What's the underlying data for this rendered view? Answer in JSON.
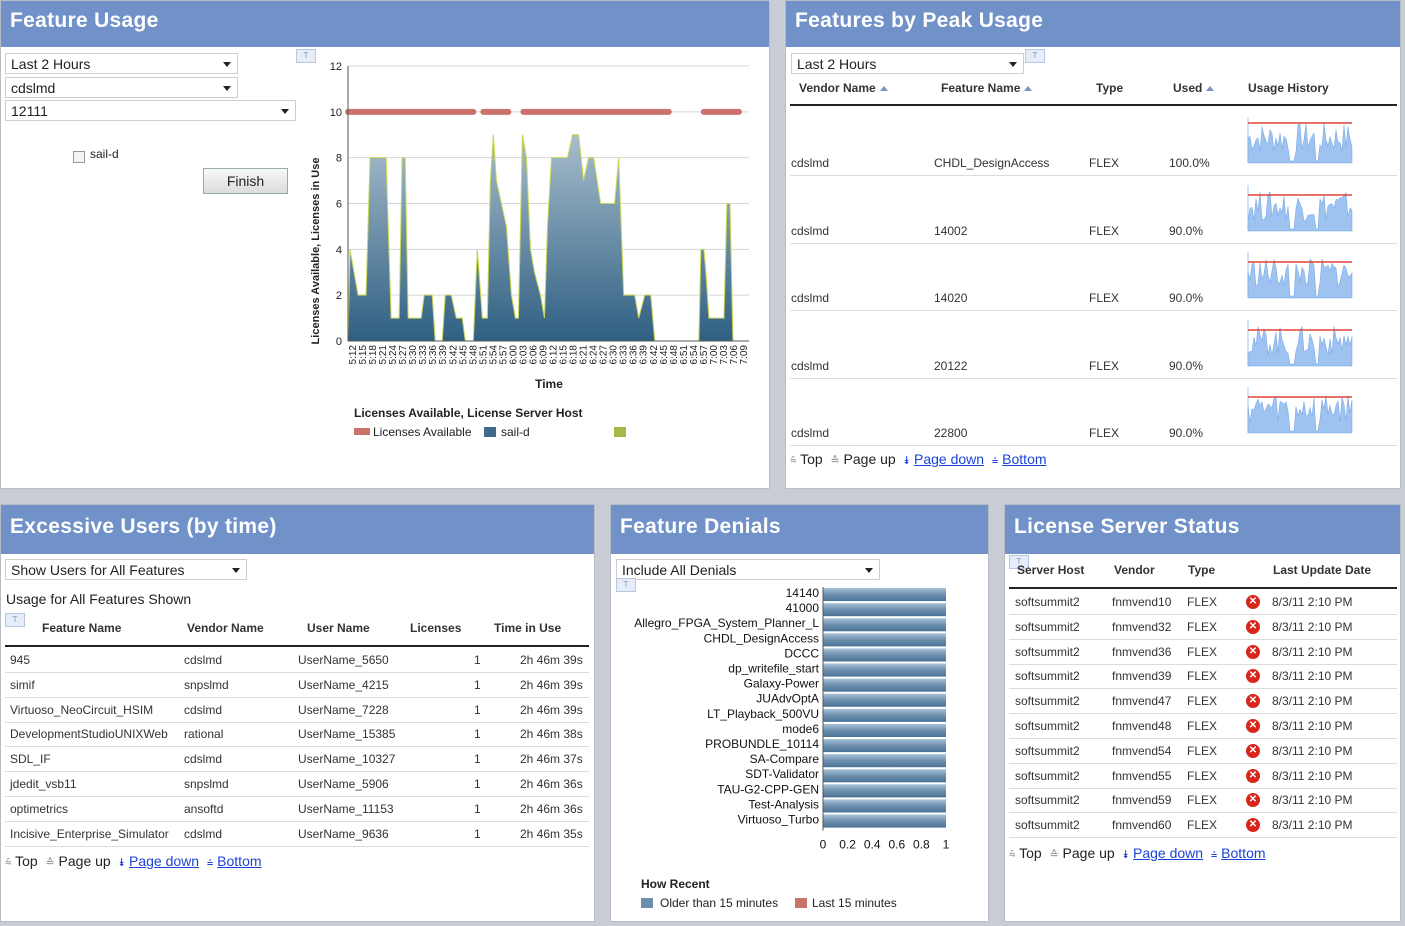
{
  "feature_usage": {
    "title": "Feature Usage",
    "time_select": "Last 2 Hours",
    "vendor_select": "cdslmd",
    "feature_select": "12111",
    "checkbox_label": "sail-d",
    "finish_label": "Finish",
    "chart_data": {
      "type": "area",
      "ylabel": "Licenses Available, Licenses in Use",
      "xlabel": "Time",
      "ylim": [
        0,
        12
      ],
      "yticks": [
        0,
        2,
        4,
        6,
        8,
        10,
        12
      ],
      "x": [
        "5:12",
        "5:15",
        "5:18",
        "5:21",
        "5:24",
        "5:27",
        "5:30",
        "5:33",
        "5:36",
        "5:39",
        "5:42",
        "5:45",
        "5:48",
        "5:51",
        "5:54",
        "5:57",
        "6:00",
        "6:03",
        "6:06",
        "6:09",
        "6:12",
        "6:15",
        "6:18",
        "6:21",
        "6:24",
        "6:27",
        "6:30",
        "6:33",
        "6:36",
        "6:39",
        "6:42",
        "6:45",
        "6:48",
        "6:51",
        "6:54",
        "6:57",
        "7:00",
        "7:03",
        "7:06",
        "7:09"
      ],
      "legend_title": "Licenses Available, License Server Host",
      "series": [
        {
          "name": "Licenses Available",
          "color": "#c9736a",
          "segments": [
            [
              0,
              12.5,
              10
            ],
            [
              13.5,
              16.0,
              10
            ],
            [
              17.5,
              32.0,
              10
            ],
            [
              35.5,
              39.0,
              10
            ]
          ]
        },
        {
          "name": "sail-d",
          "color": "#3d6a8e",
          "points": [
            [
              0,
              0
            ],
            [
              0.2,
              4
            ],
            [
              0.6,
              3
            ],
            [
              1.0,
              2
            ],
            [
              1.8,
              2
            ],
            [
              2.2,
              8
            ],
            [
              3.8,
              8
            ],
            [
              4.3,
              1
            ],
            [
              5.1,
              1
            ],
            [
              5.4,
              8
            ],
            [
              5.7,
              8
            ],
            [
              6.0,
              1
            ],
            [
              7.3,
              1
            ],
            [
              7.6,
              2
            ],
            [
              8.4,
              2
            ],
            [
              8.7,
              0
            ],
            [
              9.4,
              0
            ],
            [
              9.7,
              2
            ],
            [
              10.3,
              2
            ],
            [
              10.8,
              1
            ],
            [
              11.4,
              1
            ],
            [
              11.7,
              0
            ],
            [
              12.5,
              0
            ],
            [
              12.9,
              4
            ],
            [
              13.4,
              1
            ],
            [
              13.9,
              1
            ],
            [
              14.2,
              7
            ],
            [
              14.5,
              9
            ],
            [
              14.8,
              7
            ],
            [
              15.3,
              6
            ],
            [
              15.8,
              5
            ],
            [
              16.3,
              2
            ],
            [
              16.7,
              1
            ],
            [
              17.0,
              1
            ],
            [
              17.4,
              9
            ],
            [
              17.8,
              8
            ],
            [
              18.2,
              4
            ],
            [
              18.6,
              3
            ],
            [
              19.2,
              2
            ],
            [
              19.6,
              1
            ],
            [
              19.9,
              5
            ],
            [
              20.3,
              8
            ],
            [
              21.9,
              8
            ],
            [
              22.4,
              9
            ],
            [
              23.0,
              9
            ],
            [
              23.5,
              7
            ],
            [
              24.0,
              8
            ],
            [
              24.5,
              8
            ],
            [
              25.2,
              6
            ],
            [
              26.0,
              6
            ],
            [
              26.6,
              6
            ],
            [
              27.0,
              8
            ],
            [
              27.5,
              2
            ],
            [
              28.0,
              2
            ],
            [
              28.6,
              2
            ],
            [
              29.0,
              1
            ],
            [
              29.6,
              2
            ],
            [
              30.2,
              2
            ],
            [
              30.6,
              0
            ],
            [
              35.0,
              0
            ],
            [
              35.2,
              4
            ],
            [
              35.5,
              4
            ],
            [
              35.7,
              3
            ],
            [
              36.0,
              1
            ],
            [
              37.5,
              1
            ],
            [
              37.8,
              6
            ],
            [
              38.1,
              6
            ],
            [
              38.4,
              0
            ]
          ]
        }
      ]
    }
  },
  "peak_usage": {
    "title": "Features by Peak Usage",
    "time_select": "Last 2 Hours",
    "columns": [
      "Vendor Name",
      "Feature Name",
      "Type",
      "Used",
      "Usage History"
    ],
    "rows": [
      {
        "vendor": "cdslmd",
        "feature": "CHDL_DesignAccess",
        "type": "FLEX",
        "used": "100.0%",
        "used_fraction": 1.0
      },
      {
        "vendor": "cdslmd",
        "feature": "14002",
        "type": "FLEX",
        "used": "90.0%",
        "used_fraction": 0.9
      },
      {
        "vendor": "cdslmd",
        "feature": "14020",
        "type": "FLEX",
        "used": "90.0%",
        "used_fraction": 0.9
      },
      {
        "vendor": "cdslmd",
        "feature": "20122",
        "type": "FLEX",
        "used": "90.0%",
        "used_fraction": 0.9
      },
      {
        "vendor": "cdslmd",
        "feature": "22800",
        "type": "FLEX",
        "used": "90.0%",
        "used_fraction": 0.9
      }
    ],
    "pager": {
      "top": "Top",
      "page_up": "Page up",
      "page_down": "Page down",
      "bottom": "Bottom"
    }
  },
  "excessive_users": {
    "title": "Excessive Users (by time)",
    "filter_select": "Show Users for All Features",
    "caption": "Usage for All Features Shown",
    "columns": [
      "Feature Name",
      "Vendor Name",
      "User Name",
      "Licenses",
      "Time in Use"
    ],
    "rows": [
      {
        "feature": "945",
        "vendor": "cdslmd",
        "user": "UserName_5650",
        "licenses": "1",
        "time": "2h 46m 39s"
      },
      {
        "feature": "simif",
        "vendor": "snpslmd",
        "user": "UserName_4215",
        "licenses": "1",
        "time": "2h 46m 39s"
      },
      {
        "feature": "Virtuoso_NeoCircuit_HSIM",
        "vendor": "cdslmd",
        "user": "UserName_7228",
        "licenses": "1",
        "time": "2h 46m 39s"
      },
      {
        "feature": "DevelopmentStudioUNIXWeb",
        "vendor": "rational",
        "user": "UserName_15385",
        "licenses": "1",
        "time": "2h 46m 38s"
      },
      {
        "feature": "SDL_IF",
        "vendor": "cdslmd",
        "user": "UserName_10327",
        "licenses": "1",
        "time": "2h 46m 37s"
      },
      {
        "feature": "jdedit_vsb11",
        "vendor": "snpslmd",
        "user": "UserName_5906",
        "licenses": "1",
        "time": "2h 46m 36s"
      },
      {
        "feature": "optimetrics",
        "vendor": "ansoftd",
        "user": "UserName_11153",
        "licenses": "1",
        "time": "2h 46m 36s"
      },
      {
        "feature": "Incisive_Enterprise_Simulator",
        "vendor": "cdslmd",
        "user": "UserName_9636",
        "licenses": "1",
        "time": "2h 46m 35s"
      }
    ],
    "pager": {
      "top": "Top",
      "page_up": "Page up",
      "page_down": "Page down",
      "bottom": "Bottom"
    }
  },
  "feature_denials": {
    "title": "Feature Denials",
    "filter_select": "Include All Denials",
    "chart_data": {
      "type": "bar",
      "orientation": "horizontal",
      "categories": [
        "14140",
        "41000",
        "Allegro_FPGA_System_Planner_L",
        "CHDL_DesignAccess",
        "DCCC",
        "dp_writefile_start",
        "Galaxy-Power",
        "JUAdvOptA",
        "LT_Playback_500VU",
        "mode6",
        "PROBUNDLE_10114",
        "SA-Compare",
        "SDT-Validator",
        "TAU-G2-CPP-GEN",
        "Test-Analysis",
        "Virtuoso_Turbo"
      ],
      "xticks": [
        "0",
        "0.2",
        "0.4",
        "0.6",
        "0.8",
        "1"
      ],
      "xlim": [
        0,
        1
      ],
      "series": [
        {
          "name": "Older than 15 minutes",
          "color": "#6d8fae",
          "values": [
            1,
            1,
            1,
            1,
            1,
            1,
            1,
            1,
            1,
            1,
            1,
            1,
            1,
            1,
            1,
            1
          ]
        },
        {
          "name": "Last 15 minutes",
          "color": "#c9736a",
          "values": [
            0,
            0,
            0,
            0,
            0,
            0,
            0,
            0,
            0,
            0,
            0,
            0,
            0,
            0,
            0,
            0
          ]
        }
      ],
      "legend_title": "How Recent"
    }
  },
  "license_server": {
    "title": "License Server Status",
    "columns": [
      "Server Host",
      "Vendor",
      "Type",
      "Last Update Date"
    ],
    "rows": [
      {
        "host": "softsummit2",
        "vendor": "fnmvend10",
        "type": "FLEX",
        "date": "8/3/11 2:10 PM"
      },
      {
        "host": "softsummit2",
        "vendor": "fnmvend32",
        "type": "FLEX",
        "date": "8/3/11 2:10 PM"
      },
      {
        "host": "softsummit2",
        "vendor": "fnmvend36",
        "type": "FLEX",
        "date": "8/3/11 2:10 PM"
      },
      {
        "host": "softsummit2",
        "vendor": "fnmvend39",
        "type": "FLEX",
        "date": "8/3/11 2:10 PM"
      },
      {
        "host": "softsummit2",
        "vendor": "fnmvend47",
        "type": "FLEX",
        "date": "8/3/11 2:10 PM"
      },
      {
        "host": "softsummit2",
        "vendor": "fnmvend48",
        "type": "FLEX",
        "date": "8/3/11 2:10 PM"
      },
      {
        "host": "softsummit2",
        "vendor": "fnmvend54",
        "type": "FLEX",
        "date": "8/3/11 2:10 PM"
      },
      {
        "host": "softsummit2",
        "vendor": "fnmvend55",
        "type": "FLEX",
        "date": "8/3/11 2:10 PM"
      },
      {
        "host": "softsummit2",
        "vendor": "fnmvend59",
        "type": "FLEX",
        "date": "8/3/11 2:10 PM"
      },
      {
        "host": "softsummit2",
        "vendor": "fnmvend60",
        "type": "FLEX",
        "date": "8/3/11 2:10 PM"
      }
    ],
    "pager": {
      "top": "Top",
      "page_up": "Page up",
      "page_down": "Page down",
      "bottom": "Bottom"
    }
  },
  "colors": {
    "header": "#7092c9",
    "link": "#1a44d6",
    "error": "#d9261c",
    "sparkline": "#9ec3f0"
  }
}
